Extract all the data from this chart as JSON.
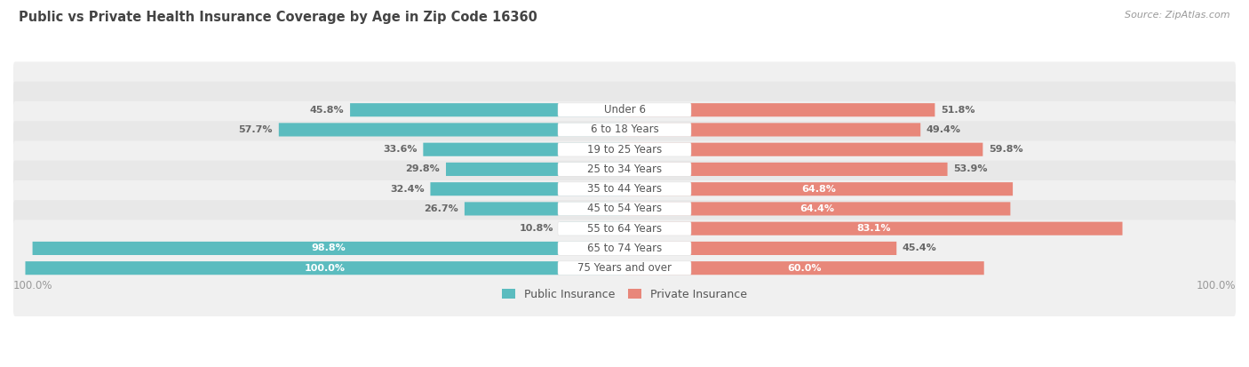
{
  "title": "Public vs Private Health Insurance Coverage by Age in Zip Code 16360",
  "source": "Source: ZipAtlas.com",
  "categories": [
    "Under 6",
    "6 to 18 Years",
    "19 to 25 Years",
    "25 to 34 Years",
    "35 to 44 Years",
    "45 to 54 Years",
    "55 to 64 Years",
    "65 to 74 Years",
    "75 Years and over"
  ],
  "public_values": [
    45.8,
    57.7,
    33.6,
    29.8,
    32.4,
    26.7,
    10.8,
    98.8,
    100.0
  ],
  "private_values": [
    51.8,
    49.4,
    59.8,
    53.9,
    64.8,
    64.4,
    83.1,
    45.4,
    60.0
  ],
  "public_color": "#5bbcbf",
  "private_color": "#e8877a",
  "public_label": "Public Insurance",
  "private_label": "Private Insurance",
  "row_bg_color_odd": "#f0f0f0",
  "row_bg_color_even": "#e8e8e8",
  "title_color": "#444444",
  "label_color_dark": "#555555",
  "value_color_outside": "#666666",
  "value_color_inside": "#ffffff",
  "center_label_color": "#555555",
  "axis_label_color": "#999999",
  "background_color": "#ffffff",
  "max_val": 100.0,
  "figsize": [
    14.06,
    4.13
  ],
  "dpi": 100,
  "pub_inside_threshold": 60,
  "priv_inside_threshold": 60
}
